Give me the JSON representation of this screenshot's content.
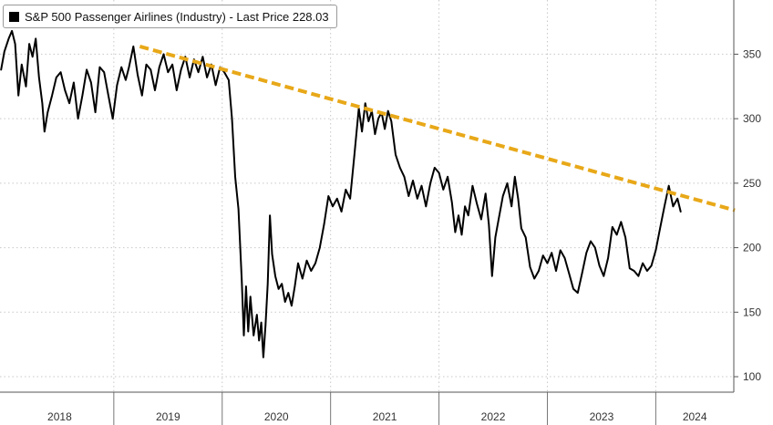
{
  "chart_data": {
    "type": "line",
    "title": "",
    "xlabel": "",
    "ylabel": "",
    "legend": {
      "text": "S&P 500 Passenger Airlines (Industry) - Last Price 228.03",
      "position": "top-left",
      "swatch_color": "#000000"
    },
    "x_labels": [
      "2018",
      "2019",
      "2020",
      "2021",
      "2022",
      "2023",
      "2024"
    ],
    "xlim": [
      2017.95,
      2024.72
    ],
    "ylim": [
      88,
      392
    ],
    "yticks": [
      100,
      150,
      200,
      250,
      300,
      350
    ],
    "y_axis_position": "right",
    "grid": true,
    "series": [
      {
        "color": "#000000",
        "values": [
          [
            2017.96,
            338
          ],
          [
            2017.99,
            352
          ],
          [
            2018.03,
            362
          ],
          [
            2018.06,
            368
          ],
          [
            2018.09,
            358
          ],
          [
            2018.12,
            318
          ],
          [
            2018.15,
            342
          ],
          [
            2018.19,
            325
          ],
          [
            2018.22,
            358
          ],
          [
            2018.25,
            348
          ],
          [
            2018.28,
            362
          ],
          [
            2018.31,
            332
          ],
          [
            2018.34,
            312
          ],
          [
            2018.36,
            290
          ],
          [
            2018.39,
            305
          ],
          [
            2018.43,
            318
          ],
          [
            2018.47,
            332
          ],
          [
            2018.51,
            336
          ],
          [
            2018.55,
            322
          ],
          [
            2018.59,
            312
          ],
          [
            2018.63,
            328
          ],
          [
            2018.67,
            300
          ],
          [
            2018.71,
            318
          ],
          [
            2018.75,
            338
          ],
          [
            2018.79,
            328
          ],
          [
            2018.83,
            305
          ],
          [
            2018.87,
            340
          ],
          [
            2018.91,
            336
          ],
          [
            2018.95,
            318
          ],
          [
            2018.99,
            300
          ],
          [
            2019.03,
            326
          ],
          [
            2019.07,
            340
          ],
          [
            2019.11,
            330
          ],
          [
            2019.14,
            340
          ],
          [
            2019.18,
            356
          ],
          [
            2019.22,
            334
          ],
          [
            2019.26,
            318
          ],
          [
            2019.3,
            342
          ],
          [
            2019.34,
            338
          ],
          [
            2019.38,
            322
          ],
          [
            2019.42,
            340
          ],
          [
            2019.46,
            350
          ],
          [
            2019.5,
            336
          ],
          [
            2019.54,
            342
          ],
          [
            2019.58,
            322
          ],
          [
            2019.62,
            338
          ],
          [
            2019.66,
            348
          ],
          [
            2019.7,
            332
          ],
          [
            2019.74,
            346
          ],
          [
            2019.78,
            336
          ],
          [
            2019.82,
            348
          ],
          [
            2019.86,
            332
          ],
          [
            2019.9,
            342
          ],
          [
            2019.94,
            326
          ],
          [
            2019.98,
            340
          ],
          [
            2020.02,
            336
          ],
          [
            2020.06,
            330
          ],
          [
            2020.09,
            300
          ],
          [
            2020.12,
            255
          ],
          [
            2020.15,
            230
          ],
          [
            2020.18,
            175
          ],
          [
            2020.2,
            132
          ],
          [
            2020.22,
            170
          ],
          [
            2020.24,
            135
          ],
          [
            2020.26,
            162
          ],
          [
            2020.29,
            132
          ],
          [
            2020.32,
            148
          ],
          [
            2020.34,
            128
          ],
          [
            2020.36,
            142
          ],
          [
            2020.38,
            115
          ],
          [
            2020.4,
            140
          ],
          [
            2020.42,
            172
          ],
          [
            2020.44,
            225
          ],
          [
            2020.46,
            195
          ],
          [
            2020.49,
            178
          ],
          [
            2020.52,
            168
          ],
          [
            2020.55,
            172
          ],
          [
            2020.58,
            158
          ],
          [
            2020.61,
            165
          ],
          [
            2020.64,
            155
          ],
          [
            2020.67,
            170
          ],
          [
            2020.7,
            188
          ],
          [
            2020.74,
            176
          ],
          [
            2020.78,
            190
          ],
          [
            2020.82,
            182
          ],
          [
            2020.86,
            188
          ],
          [
            2020.9,
            200
          ],
          [
            2020.94,
            218
          ],
          [
            2020.98,
            240
          ],
          [
            2021.02,
            232
          ],
          [
            2021.06,
            238
          ],
          [
            2021.1,
            228
          ],
          [
            2021.14,
            245
          ],
          [
            2021.18,
            238
          ],
          [
            2021.22,
            272
          ],
          [
            2021.26,
            308
          ],
          [
            2021.29,
            290
          ],
          [
            2021.32,
            312
          ],
          [
            2021.35,
            298
          ],
          [
            2021.38,
            306
          ],
          [
            2021.41,
            288
          ],
          [
            2021.44,
            300
          ],
          [
            2021.47,
            305
          ],
          [
            2021.5,
            292
          ],
          [
            2021.53,
            306
          ],
          [
            2021.56,
            298
          ],
          [
            2021.6,
            272
          ],
          [
            2021.64,
            262
          ],
          [
            2021.68,
            255
          ],
          [
            2021.72,
            240
          ],
          [
            2021.76,
            252
          ],
          [
            2021.8,
            238
          ],
          [
            2021.84,
            248
          ],
          [
            2021.88,
            232
          ],
          [
            2021.92,
            250
          ],
          [
            2021.96,
            262
          ],
          [
            2022.0,
            258
          ],
          [
            2022.04,
            245
          ],
          [
            2022.08,
            255
          ],
          [
            2022.12,
            235
          ],
          [
            2022.15,
            212
          ],
          [
            2022.18,
            225
          ],
          [
            2022.21,
            210
          ],
          [
            2022.24,
            232
          ],
          [
            2022.27,
            225
          ],
          [
            2022.31,
            248
          ],
          [
            2022.35,
            234
          ],
          [
            2022.39,
            222
          ],
          [
            2022.43,
            242
          ],
          [
            2022.46,
            218
          ],
          [
            2022.49,
            178
          ],
          [
            2022.52,
            208
          ],
          [
            2022.55,
            222
          ],
          [
            2022.59,
            240
          ],
          [
            2022.63,
            250
          ],
          [
            2022.67,
            232
          ],
          [
            2022.7,
            255
          ],
          [
            2022.73,
            238
          ],
          [
            2022.76,
            215
          ],
          [
            2022.8,
            208
          ],
          [
            2022.84,
            185
          ],
          [
            2022.88,
            176
          ],
          [
            2022.92,
            182
          ],
          [
            2022.96,
            194
          ],
          [
            2023.0,
            188
          ],
          [
            2023.04,
            196
          ],
          [
            2023.08,
            182
          ],
          [
            2023.12,
            198
          ],
          [
            2023.16,
            192
          ],
          [
            2023.2,
            180
          ],
          [
            2023.24,
            168
          ],
          [
            2023.28,
            165
          ],
          [
            2023.32,
            180
          ],
          [
            2023.36,
            196
          ],
          [
            2023.4,
            205
          ],
          [
            2023.44,
            200
          ],
          [
            2023.48,
            186
          ],
          [
            2023.52,
            178
          ],
          [
            2023.56,
            192
          ],
          [
            2023.6,
            216
          ],
          [
            2023.64,
            210
          ],
          [
            2023.68,
            220
          ],
          [
            2023.72,
            208
          ],
          [
            2023.76,
            184
          ],
          [
            2023.8,
            182
          ],
          [
            2023.84,
            178
          ],
          [
            2023.88,
            188
          ],
          [
            2023.92,
            182
          ],
          [
            2023.96,
            186
          ],
          [
            2024.0,
            198
          ],
          [
            2024.04,
            215
          ],
          [
            2024.08,
            232
          ],
          [
            2024.12,
            248
          ],
          [
            2024.16,
            232
          ],
          [
            2024.2,
            238
          ],
          [
            2024.23,
            228
          ]
        ]
      }
    ],
    "trendline": {
      "color": "#E8A818",
      "style": "dashed",
      "points": [
        [
          2019.24,
          356
        ],
        [
          2024.73,
          229
        ]
      ]
    }
  }
}
